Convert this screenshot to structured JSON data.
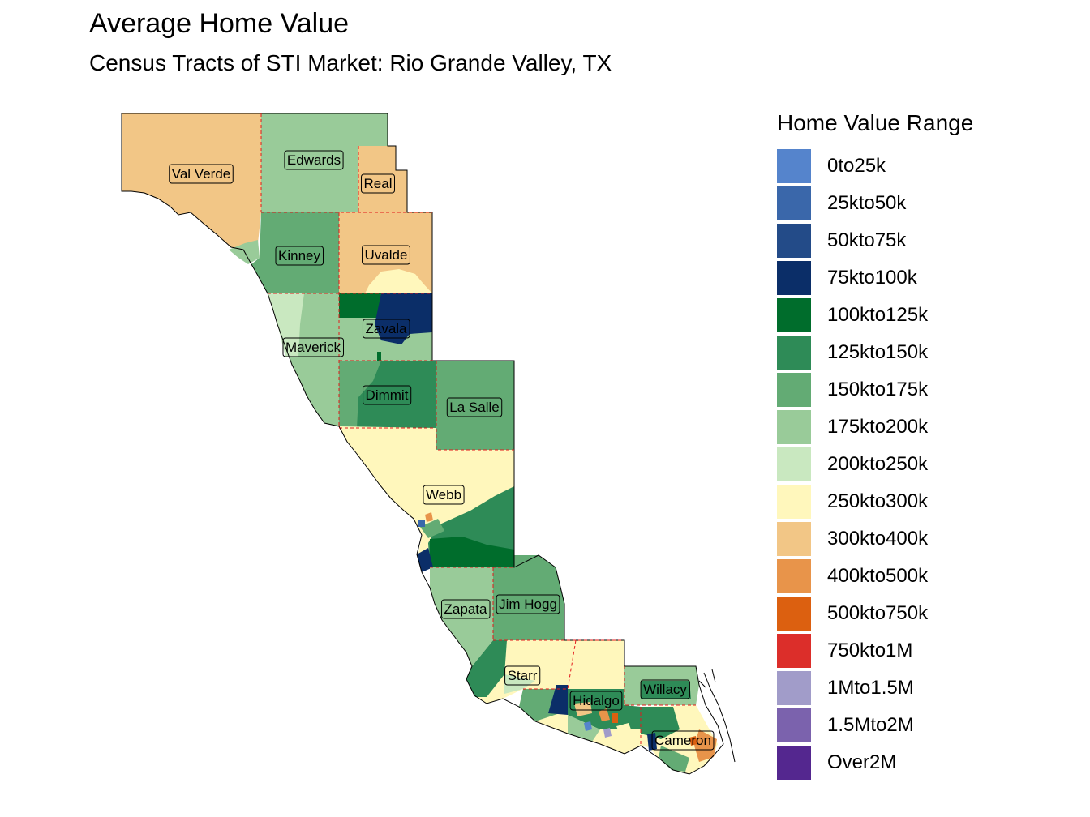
{
  "title": "Average Home Value",
  "subtitle": "Census Tracts of STI Market: Rio Grande Valley, TX",
  "legend": {
    "title": "Home Value Range",
    "items": [
      {
        "label": "0to25k",
        "color": "#5584cc"
      },
      {
        "label": "25kto50k",
        "color": "#3a67aa"
      },
      {
        "label": "50kto75k",
        "color": "#234b88"
      },
      {
        "label": "75kto100k",
        "color": "#0b2e68"
      },
      {
        "label": "100kto125k",
        "color": "#006d2c"
      },
      {
        "label": "125kto150k",
        "color": "#2e8b57"
      },
      {
        "label": "150kto175k",
        "color": "#63ab74"
      },
      {
        "label": "175kto200k",
        "color": "#99cb99"
      },
      {
        "label": "200kto250k",
        "color": "#c9e8c0"
      },
      {
        "label": "250kto300k",
        "color": "#fff7bc"
      },
      {
        "label": "300kto400k",
        "color": "#f2c686"
      },
      {
        "label": "400kto500k",
        "color": "#e8944a"
      },
      {
        "label": "500kto750k",
        "color": "#dc6010"
      },
      {
        "label": "750kto1M",
        "color": "#dc2e2a"
      },
      {
        "label": "1Mto1.5M",
        "color": "#a19cc9"
      },
      {
        "label": "1.5Mto2M",
        "color": "#7b62ad"
      },
      {
        "label": "Over2M",
        "color": "#54278f"
      }
    ]
  },
  "counties": [
    {
      "id": "val-verde",
      "name": "Val Verde"
    },
    {
      "id": "edwards",
      "name": "Edwards"
    },
    {
      "id": "real",
      "name": "Real"
    },
    {
      "id": "kinney",
      "name": "Kinney"
    },
    {
      "id": "uvalde",
      "name": "Uvalde"
    },
    {
      "id": "zavala",
      "name": "Zavala"
    },
    {
      "id": "maverick",
      "name": "Maverick"
    },
    {
      "id": "dimmit",
      "name": "Dimmit"
    },
    {
      "id": "la-salle",
      "name": "La Salle"
    },
    {
      "id": "webb",
      "name": "Webb"
    },
    {
      "id": "zapata",
      "name": "Zapata"
    },
    {
      "id": "jim-hogg",
      "name": "Jim Hogg"
    },
    {
      "id": "starr",
      "name": "Starr"
    },
    {
      "id": "hidalgo",
      "name": "Hidalgo"
    },
    {
      "id": "willacy",
      "name": "Willacy"
    },
    {
      "id": "cameron",
      "name": "Cameron"
    }
  ]
}
